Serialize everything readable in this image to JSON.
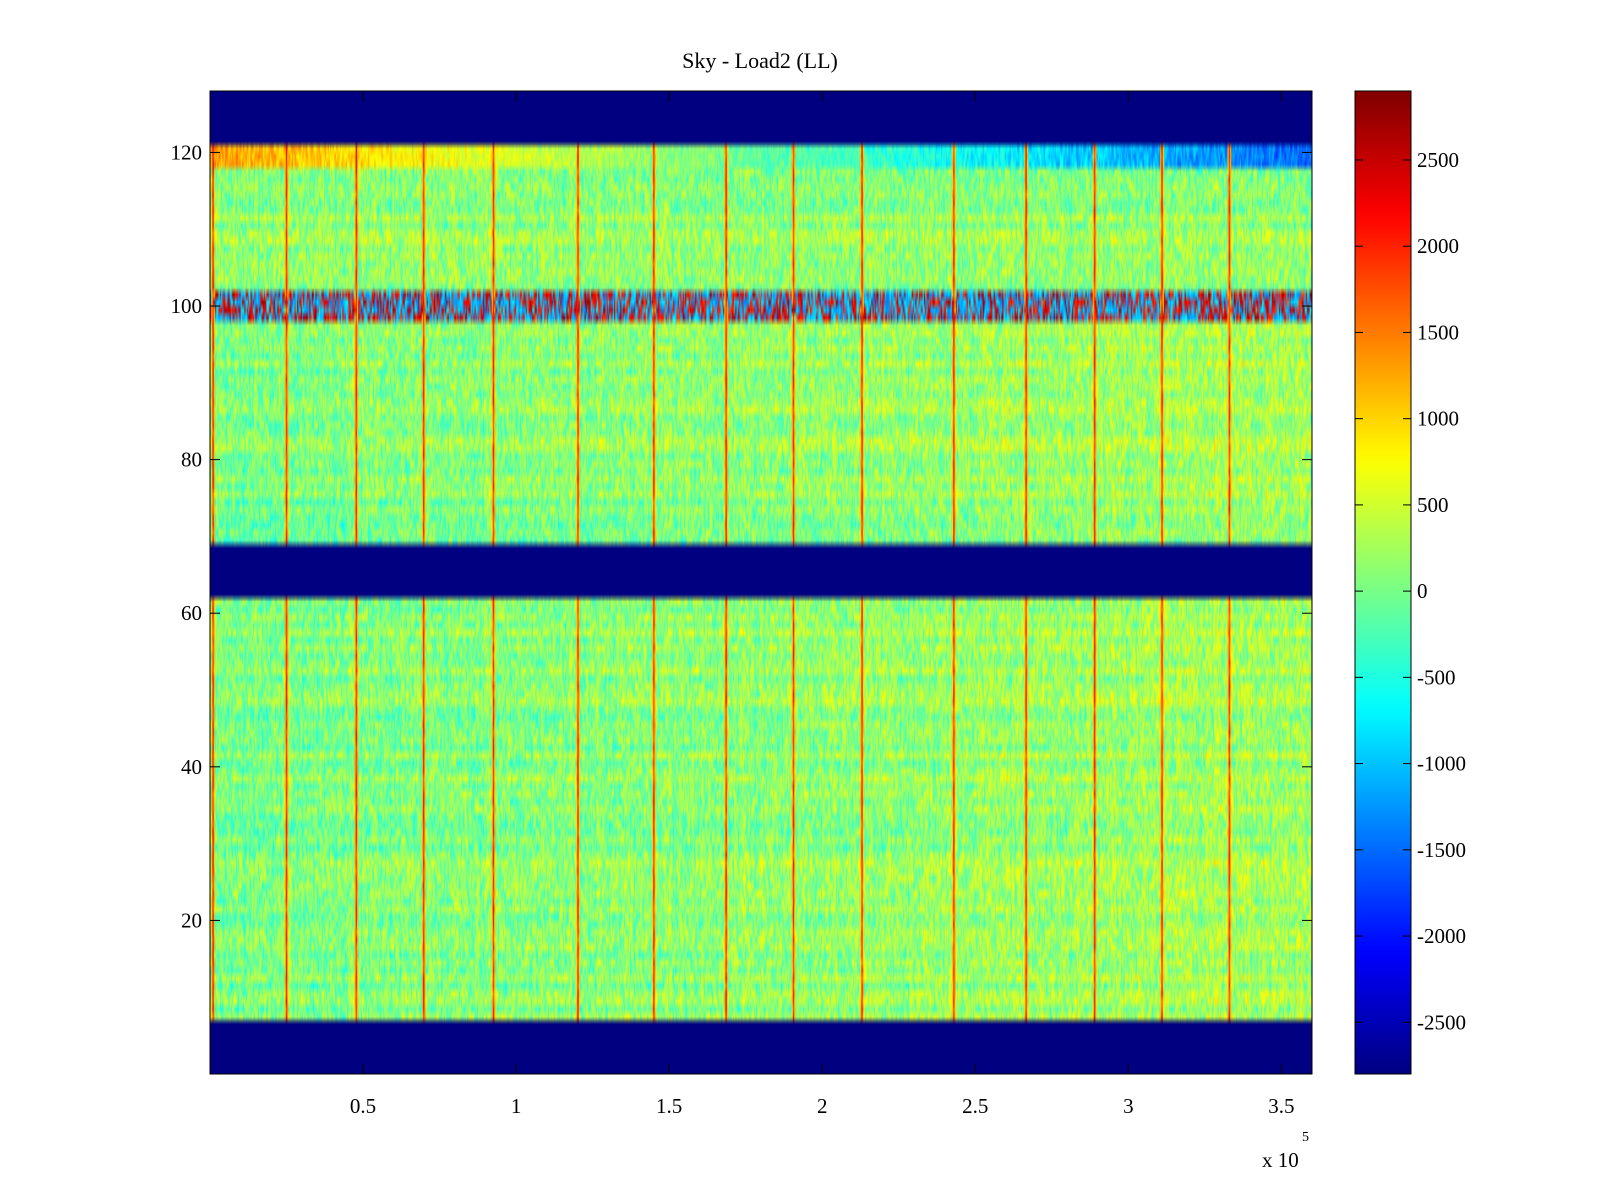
{
  "chart_data": {
    "type": "heatmap",
    "title": "Sky - Load2 (LL)",
    "xlabel": "",
    "ylabel": "",
    "x_range": [
      0,
      360000
    ],
    "y_range": [
      0,
      128
    ],
    "x_ticks": [
      0.5,
      1,
      1.5,
      2,
      2.5,
      3,
      3.5
    ],
    "x_tick_labels": [
      "0.5",
      "1",
      "1.5",
      "2",
      "2.5",
      "3",
      "3.5"
    ],
    "x_exponent": {
      "base": "x 10",
      "power": "5"
    },
    "y_ticks": [
      20,
      40,
      60,
      80,
      100,
      120
    ],
    "y_tick_labels": [
      "20",
      "40",
      "60",
      "80",
      "100",
      "120"
    ],
    "colormap": "jet",
    "color_range": [
      -2800,
      2900
    ],
    "colorbar_ticks": [
      2500,
      2000,
      1500,
      1000,
      500,
      0,
      -500,
      -1000,
      -1500,
      -2000,
      -2500
    ],
    "colorbar_tick_labels": [
      "2500",
      "2000",
      "1500",
      "1000",
      "500",
      "0",
      "-500",
      "-1000",
      "-1500",
      "-2000",
      "-2500"
    ],
    "masked_rows": [
      [
        0,
        7
      ],
      [
        62,
        69
      ],
      [
        121,
        128
      ]
    ],
    "masked_value": -2800,
    "data_row_bands": [
      [
        7,
        62
      ],
      [
        69,
        121
      ]
    ],
    "background_value": 150,
    "noise_amplitude": 500,
    "vertical_spikes_x": [
      1000,
      25000,
      47500,
      69500,
      92500,
      120000,
      145000,
      168500,
      190500,
      213000,
      243000,
      266500,
      289000,
      311000,
      333000
    ],
    "spike_value": 2500,
    "stripe_row_y": 100,
    "stripe_row_note": "alternating hot/cold row near channel 100",
    "top_rows_trend": {
      "y_from": 118,
      "y_to": 121,
      "start_value": 1300,
      "end_value": -1500
    }
  }
}
